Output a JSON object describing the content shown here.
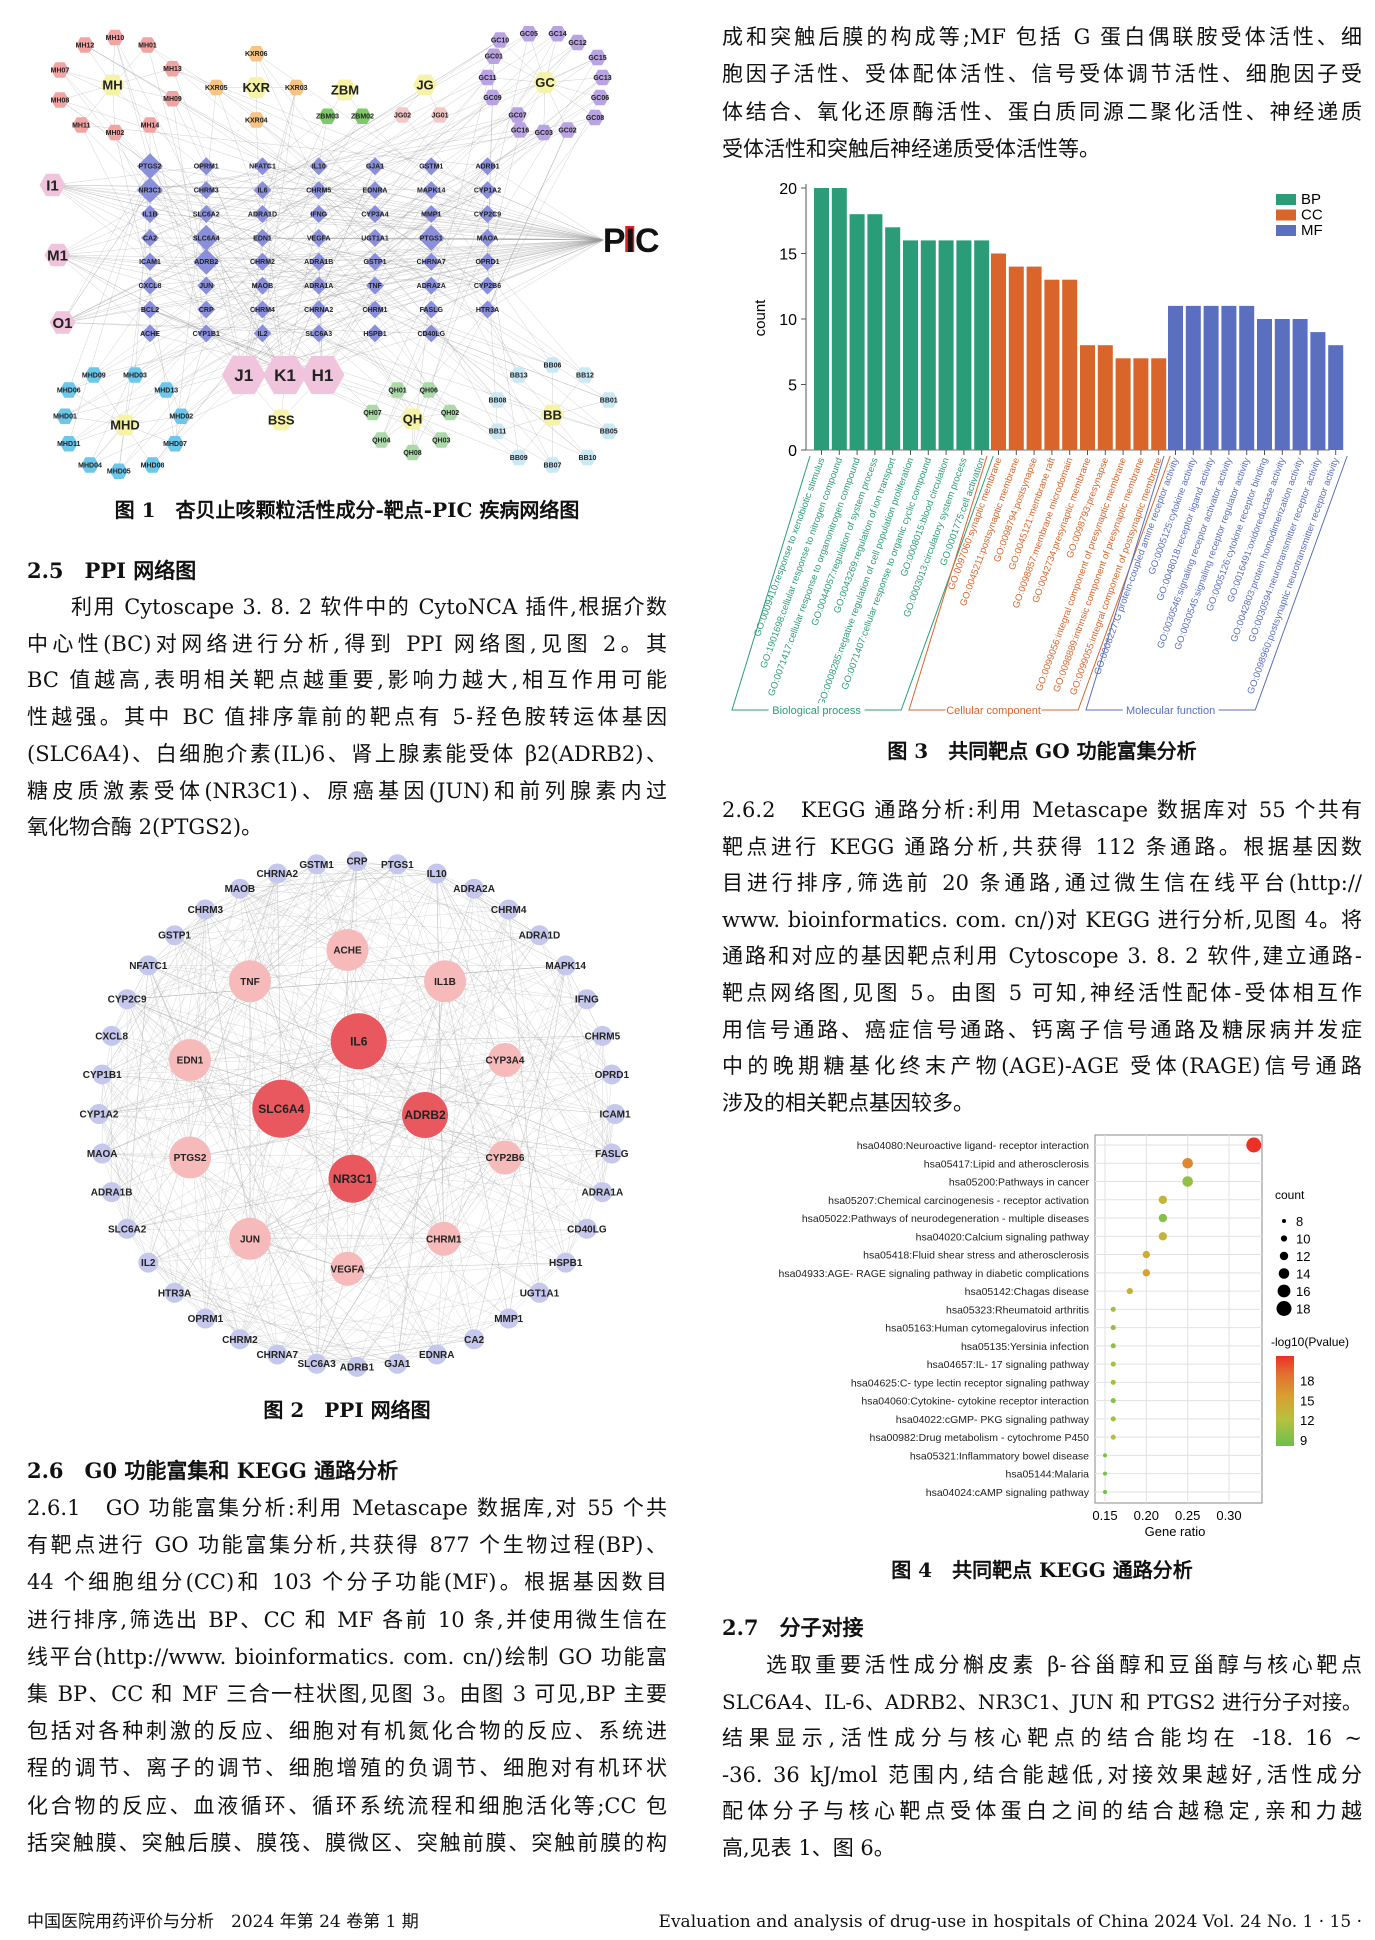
{
  "right_top": {
    "lines": [
      "成和突触后膜的构成等;MF 包括 G 蛋白偶联胺受体活性、细",
      "胞因子活性、受体配体活性、信号受体调节活性、细胞因子受",
      "体结合、氧化还原酶活性、蛋白质同源二聚化活性、神经递质",
      "受体活性和突触后神经递质受体活性等。"
    ]
  },
  "fig1": {
    "caption": "图 1　杏贝止咳颗粒活性成分-靶点-PIC 疾病网络图",
    "disease": "PIC",
    "compounds": [
      "I1",
      "M1",
      "O1",
      "J1",
      "K1",
      "H1"
    ],
    "herbs": [
      {
        "name": "MH",
        "color": "#f2a3a3",
        "ingredients": [
          "MH10",
          "MH01",
          "MH12",
          "MH07",
          "MH13",
          "MH08",
          "MH09",
          "MH11",
          "MH02",
          "MH14"
        ]
      },
      {
        "name": "KXR",
        "color": "#f6c486",
        "ingredients": [
          "KXR06",
          "KXR05",
          "KXR03",
          "KXR04"
        ]
      },
      {
        "name": "ZBM",
        "color": "#7fc96a",
        "ingredients": [
          "ZBM03",
          "ZBM02"
        ]
      },
      {
        "name": "JG",
        "color": "#f5c8c8",
        "ingredients": [
          "JG02",
          "JG01"
        ]
      },
      {
        "name": "GC",
        "color": "#b9a3e3",
        "ingredients": [
          "GC10",
          "GC05",
          "GC14",
          "GC12",
          "GC01",
          "GC15",
          "GC11",
          "GC13",
          "GC09",
          "GC06",
          "GC07",
          "GC08",
          "GC16",
          "GC03",
          "GC02"
        ]
      },
      {
        "name": "MHD",
        "color": "#6cc7ea",
        "ingredients": [
          "MHD09",
          "MHD03",
          "MHD06",
          "MHD13",
          "MHD01",
          "MHD02",
          "MHD11",
          "MHD07",
          "MHD04",
          "MHD05",
          "MHD08"
        ]
      },
      {
        "name": "QH",
        "color": "#abd9a8",
        "ingredients": [
          "QH01",
          "QH06",
          "QH07",
          "QH02",
          "QH04",
          "QH03",
          "QH08"
        ]
      },
      {
        "name": "BB",
        "color": "#cbe8f5",
        "ingredients": [
          "BB06",
          "BB13",
          "BB12",
          "BB08",
          "BB01",
          "BB11",
          "BB05",
          "BB09",
          "BB07",
          "BB10"
        ]
      },
      {
        "name": "BSS",
        "color": "#f6f3a6",
        "ingredients": []
      }
    ],
    "targets": [
      "PTGS2",
      "OPRM1",
      "NFATC1",
      "IL10",
      "GJA1",
      "GSTM1",
      "ADRB1",
      "NR3C1",
      "CHRM3",
      "IL6",
      "CHRM5",
      "EDNRA",
      "MAPK14",
      "CYP1A2",
      "IL1B",
      "SLC6A2",
      "ADRA1D",
      "IFNG",
      "CYP3A4",
      "MMP1",
      "CYP2C9",
      "CA2",
      "SLC6A4",
      "EDN1",
      "VEGFA",
      "UGT1A1",
      "PTGS1",
      "MAOA",
      "ICAM1",
      "ADRB2",
      "CHRM2",
      "ADRA1B",
      "GSTP1",
      "CHRNA7",
      "OPRD1",
      "CXCL8",
      "JUN",
      "MAOB",
      "ADRA1A",
      "TNF",
      "ADRA2A",
      "CYP2B6",
      "BCL2",
      "CRP",
      "CHRM4",
      "CHRNA2",
      "CHRM1",
      "FASLG",
      "HTR3A",
      "ACHE",
      "CYP1B1",
      "IL2",
      "SLC6A3",
      "HSPB1",
      "CD40LG"
    ],
    "colors": {
      "target": "#8a8fdb",
      "compound": "#f0c4dc",
      "herb": "#f6f3a6",
      "disease_accent": "#e02020"
    }
  },
  "sec25": {
    "heading": "2.5　PPI 网络图",
    "lines": [
      "利用 Cytoscape 3. 8. 2 软件中的 CytoNCA 插件,根据介数",
      "中心性(BC)对网络进行分析,得到 PPI 网络图,见图 2。其",
      "BC 值越高,表明相关靶点越重要,影响力越大,相互作用可能",
      "性越强。其中 BC 值排序靠前的靶点有 5-羟色胺转运体基因",
      "(SLC6A4)、白细胞介素(IL)6、肾上腺素能受体 β2(ADRB2)、",
      "糖皮质激素受体(NR3C1)、原癌基因(JUN)和前列腺素内过",
      "氧化物合酶 2(PTGS2)。"
    ]
  },
  "fig2": {
    "caption": "图 2　PPI 网络图",
    "core": [
      "IL6",
      "SLC6A4",
      "ADRB2",
      "NR3C1"
    ],
    "inner": [
      "ACHE",
      "IL1B",
      "CYP3A4",
      "CYP2B6",
      "CHRM1",
      "VEGFA",
      "JUN",
      "PTGS2",
      "EDN1",
      "TNF"
    ],
    "outer": [
      "CRP",
      "PTGS1",
      "IL10",
      "ADRA2A",
      "CHRM4",
      "ADRA1D",
      "MAPK14",
      "IFNG",
      "CHRM5",
      "OPRD1",
      "ICAM1",
      "FASLG",
      "ADRA1A",
      "CD40LG",
      "HSPB1",
      "UGT1A1",
      "MMP1",
      "CA2",
      "EDNRA",
      "GJA1",
      "ADRB1",
      "SLC6A3",
      "CHRNA7",
      "CHRM2",
      "OPRM1",
      "HTR3A",
      "IL2",
      "SLC6A2",
      "ADRA1B",
      "MAOA",
      "CYP1A2",
      "CYP1B1",
      "CXCL8",
      "CYP2C9",
      "NFATC1",
      "GSTP1",
      "CHRM3",
      "MAOB",
      "CHRNA2",
      "GSTM1"
    ],
    "colors": {
      "core": "#e8585e",
      "inner": "#f6baba",
      "outer": "#c6c7ec"
    }
  },
  "sec26": {
    "heading": "2.6　G0 功能富集和 KEGG 通路分析",
    "lines": [
      "2.6.1　GO 功能富集分析:利用 Metascape 数据库,对 55 个共",
      "有靶点进行 GO 功能富集分析,共获得 877 个生物过程(BP)、",
      "44 个细胞组分(CC)和 103 个分子功能(MF)。根据基因数目",
      "进行排序,筛选出 BP、CC 和 MF 各前 10 条,并使用微生信在",
      "线平台(http://www. bioinformatics. com. cn/)绘制 GO 功能富",
      "集 BP、CC 和 MF 三合一柱状图,见图 3。由图 3 可见,BP 主要",
      "包括对各种刺激的反应、细胞对有机氮化合物的反应、系统进",
      "程的调节、离子的调节、细胞增殖的负调节、细胞对有机环状",
      "化合物的反应、血液循环、循环系统流程和细胞活化等;CC 包",
      "括突触膜、突触后膜、膜筏、膜微区、突触前膜、突触前膜的构"
    ]
  },
  "sec262": {
    "lines": [
      "2.6.2　KEGG 通路分析:利用 Metascape 数据库对 55 个共有",
      "靶点进行 KEGG 通路分析,共获得 112 条通路。根据基因数",
      "目进行排序,筛选前 20 条通路,通过微生信在线平台(http://",
      "www. bioinformatics. com. cn/)对 KEGG 进行分析,见图 4。将",
      "通路和对应的基因靶点利用 Cytoscope 3. 8. 2 软件,建立通路-",
      "靶点网络图,见图 5。由图 5 可知,神经活性配体-受体相互作",
      "用信号通路、癌症信号通路、钙离子信号通路及糖尿病并发症",
      "中的晚期糖基化终末产物(AGE)-AGE 受体(RAGE)信号通路",
      "涉及的相关靶点基因较多。"
    ]
  },
  "sec27": {
    "heading": "2.7　分子对接",
    "lines": [
      "选取重要活性成分槲皮素 β-谷甾醇和豆甾醇与核心靶点",
      "SLC6A4、IL-6、ADRB2、NR3C1、JUN 和 PTGS2 进行分子对接。",
      "结果显示,活性成分与核心靶点的结合能均在 -18. 16 ~",
      "-36. 36 kJ/mol 范围内,结合能越低,对接效果越好,活性成分",
      "配体分子与核心靶点受体蛋白之间的结合越稳定,亲和力越",
      "高,见表 1、图 6。"
    ]
  },
  "chart_data": [
    {
      "type": "bar",
      "title": "",
      "caption": "图 3　共同靶点 GO 功能富集分析",
      "ylabel": "count",
      "ylim": [
        0,
        20
      ],
      "yticks": [
        "0",
        "5",
        "10",
        "15",
        "20"
      ],
      "legend": {
        "position": "top-right"
      },
      "series": [
        {
          "name": "BP",
          "group_label": "Biological process",
          "color": "#2a9d78",
          "categories": [
            "GO:0009410:response to xenobiotic stimulus",
            "GO:1901698:cellular response to nitrogen compound",
            "GO:0071417:cellular response to organonitrogen compound",
            "GO:0044057:regulation of system process",
            "GO:0043269:regulation of ion transport",
            "GO:0008285:negative regulation of cell population proliferation",
            "GO:0071407:cellular response to organic cyclic compound",
            "GO:0008015:blood circulation",
            "GO:0003013:circulatory system process",
            "GO:0001775:cell activation"
          ],
          "values": [
            20,
            20,
            18,
            18,
            17,
            16,
            16,
            16,
            16,
            16
          ]
        },
        {
          "name": "CC",
          "group_label": "Cellular component",
          "color": "#d9652b",
          "categories": [
            "GO:0097060:synaptic membrane",
            "GO:0045211:postsynaptic membrane",
            "GO:0098794:postsynapse",
            "GO:0045121:membrane raft",
            "GO:0098857:membrane microdomain",
            "GO:0042734:presynaptic membrane",
            "GO:0098793:presynapse",
            "GO:0099056:integral component of presynaptic membrane",
            "GO:0098889:intrinsic component of presynaptic membrane",
            "GO:0099055:integral component of postsynaptic membrane"
          ],
          "values": [
            15,
            14,
            14,
            13,
            13,
            8,
            8,
            7,
            7,
            7
          ]
        },
        {
          "name": "MF",
          "group_label": "Molecular function",
          "color": "#5a6fbf",
          "categories": [
            "GO:0008227:G protein-coupled amine receptor activity",
            "GO:0005125:cytokine activity",
            "GO:0048018:receptor ligand activity",
            "GO:0030546:signaling receptor activator activity",
            "GO:0030545:signaling receptor regulator activity",
            "GO:0005126:cytokine receptor binding",
            "GO:0016491:oxidoreductase activity",
            "GO:0042803:protein homodimerization activity",
            "GO:0030594:neurotransmitter receptor activity",
            "GO:0098960:postsynaptic neurotransmitter receptor activity"
          ],
          "values": [
            11,
            11,
            11,
            11,
            11,
            10,
            10,
            10,
            9,
            8
          ]
        }
      ]
    },
    {
      "type": "scatter",
      "title": "",
      "caption": "图 4　共同靶点 KEGG 通路分析",
      "xlabel": "Gene ratio",
      "xlim": [
        0.14,
        0.34
      ],
      "xticks": [
        "0.15",
        "0.20",
        "0.25",
        "0.30"
      ],
      "grid": true,
      "size_legend": {
        "title": "count",
        "values": [
          "8",
          "10",
          "12",
          "14",
          "16",
          "18"
        ]
      },
      "color_legend": {
        "title": "-log10(Pvalue)",
        "ticks": [
          "18",
          "15",
          "12",
          "9"
        ],
        "low_color": "#6cc04a",
        "high_color": "#ec3028"
      },
      "pathways": [
        {
          "label": "hsa04080:Neuroactive ligand- receptor interaction",
          "gene_ratio": 0.33,
          "count": 18,
          "neglog10p": 20
        },
        {
          "label": "hsa05417:Lipid and atherosclerosis",
          "gene_ratio": 0.25,
          "count": 14,
          "neglog10p": 16.5
        },
        {
          "label": "hsa05200:Pathways in cancer",
          "gene_ratio": 0.25,
          "count": 14,
          "neglog10p": 10.5
        },
        {
          "label": "hsa05207:Chemical carcinogenesis -  receptor activation",
          "gene_ratio": 0.22,
          "count": 12,
          "neglog10p": 13
        },
        {
          "label": "hsa05022:Pathways of neurodegeneration -  multiple diseases",
          "gene_ratio": 0.22,
          "count": 12,
          "neglog10p": 10
        },
        {
          "label": "hsa04020:Calcium signaling pathway",
          "gene_ratio": 0.22,
          "count": 12,
          "neglog10p": 13
        },
        {
          "label": "hsa05418:Fluid shear stress and atherosclerosis",
          "gene_ratio": 0.2,
          "count": 11,
          "neglog10p": 14
        },
        {
          "label": "hsa04933:AGE- RAGE signaling pathway in diabetic complications",
          "gene_ratio": 0.2,
          "count": 11,
          "neglog10p": 15
        },
        {
          "label": "hsa05142:Chagas disease",
          "gene_ratio": 0.18,
          "count": 10,
          "neglog10p": 13.5
        },
        {
          "label": "hsa05323:Rheumatoid arthritis",
          "gene_ratio": 0.16,
          "count": 9,
          "neglog10p": 11
        },
        {
          "label": "hsa05163:Human cytomegalovirus infection",
          "gene_ratio": 0.16,
          "count": 9,
          "neglog10p": 10.5
        },
        {
          "label": "hsa05135:Yersinia infection",
          "gene_ratio": 0.16,
          "count": 9,
          "neglog10p": 10.5
        },
        {
          "label": "hsa04657:IL- 17 signaling pathway",
          "gene_ratio": 0.16,
          "count": 9,
          "neglog10p": 11
        },
        {
          "label": "hsa04625:C- type lectin receptor signaling pathway",
          "gene_ratio": 0.16,
          "count": 9,
          "neglog10p": 11
        },
        {
          "label": "hsa04060:Cytokine- cytokine receptor interaction",
          "gene_ratio": 0.16,
          "count": 9,
          "neglog10p": 10
        },
        {
          "label": "hsa04022:cGMP- PKG signaling pathway",
          "gene_ratio": 0.16,
          "count": 9,
          "neglog10p": 11
        },
        {
          "label": "hsa00982:Drug metabolism -  cytochrome P450",
          "gene_ratio": 0.16,
          "count": 9,
          "neglog10p": 12.5
        },
        {
          "label": "hsa05321:Inflammatory bowel disease",
          "gene_ratio": 0.15,
          "count": 8,
          "neglog10p": 9.5
        },
        {
          "label": "hsa05144:Malaria",
          "gene_ratio": 0.15,
          "count": 8,
          "neglog10p": 9.5
        },
        {
          "label": "hsa04024:cAMP signaling pathway",
          "gene_ratio": 0.15,
          "count": 8,
          "neglog10p": 9
        }
      ]
    }
  ],
  "footer": {
    "left": "中国医院用药评价与分析　2024 年第 24 卷第 1 期",
    "right": "Evaluation and analysis of drug-use in hospitals of China 2024 Vol. 24 No. 1 · 15 ·"
  }
}
